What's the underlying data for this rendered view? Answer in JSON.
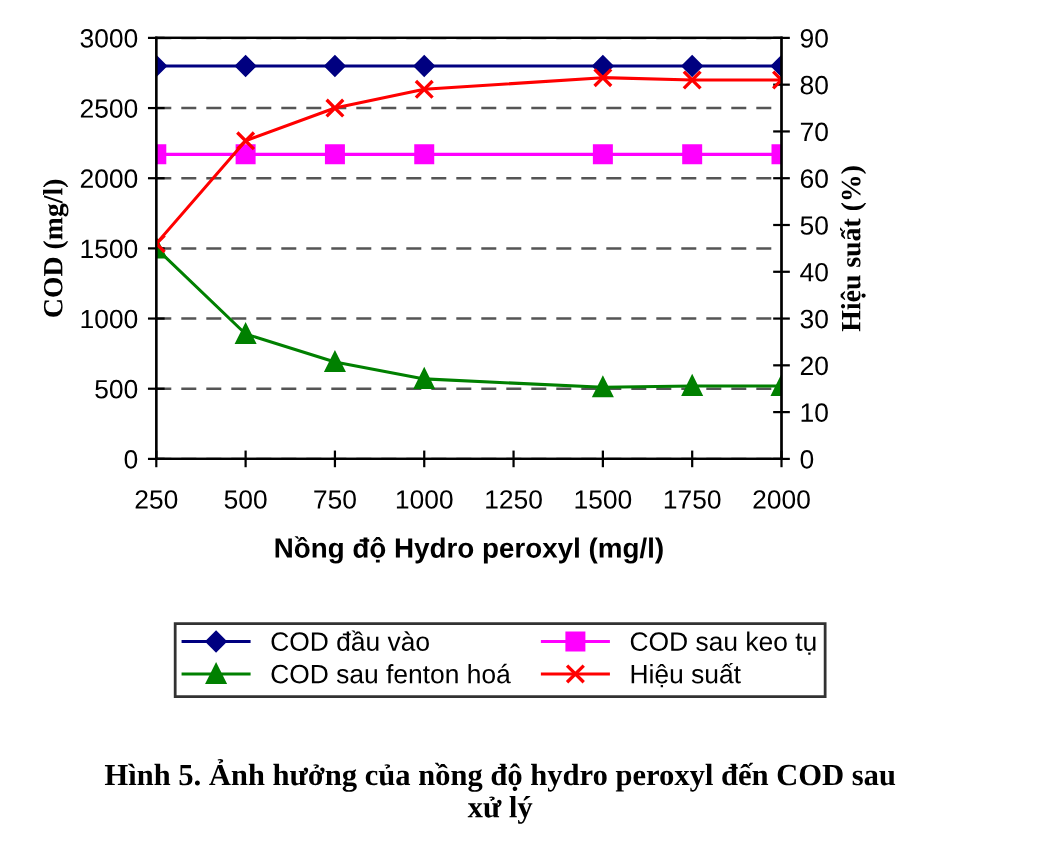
{
  "chart_data": {
    "type": "line",
    "x": [
      250,
      500,
      750,
      1000,
      1500,
      1750,
      2000
    ],
    "xlabel": "Nồng độ Hydro peroxyl (mg/l)",
    "ylabel": "COD (mg/l)",
    "y2label": "Hiệu suất (%)",
    "xlim": [
      250,
      2000
    ],
    "xticks": [
      250,
      500,
      750,
      1000,
      1250,
      1500,
      1750,
      2000
    ],
    "ylim": [
      0,
      3000
    ],
    "yticks": [
      0,
      500,
      1000,
      1500,
      2000,
      2500,
      3000
    ],
    "y2lim": [
      0,
      90
    ],
    "y2ticks": [
      0,
      10,
      20,
      30,
      40,
      50,
      60,
      70,
      80,
      90
    ],
    "grid": "y",
    "legend": "bottom",
    "series": [
      {
        "name": "COD đầu vào",
        "color": "#000080",
        "marker": "diamond",
        "values": [
          2800,
          2800,
          2800,
          2800,
          2800,
          2800,
          2800
        ]
      },
      {
        "name": "COD sau keo tụ",
        "color": "#ff00ff",
        "marker": "square",
        "values": [
          2170,
          2170,
          2170,
          2170,
          2170,
          2170,
          2170
        ]
      },
      {
        "name": "COD sau fenton hoá",
        "color": "#008000",
        "marker": "triangle",
        "values": [
          1500,
          890,
          690,
          570,
          510,
          520,
          520
        ]
      },
      {
        "name": "Hiệu suất",
        "color": "#ff0000",
        "marker": "cross",
        "axis": "y2",
        "values": [
          46,
          68,
          75,
          79,
          81.5,
          81,
          81
        ]
      }
    ],
    "annotations": [
      "Hình 5. Ảnh hưởng của nồng độ hydro peroxyl đến COD sau xử lý"
    ]
  }
}
